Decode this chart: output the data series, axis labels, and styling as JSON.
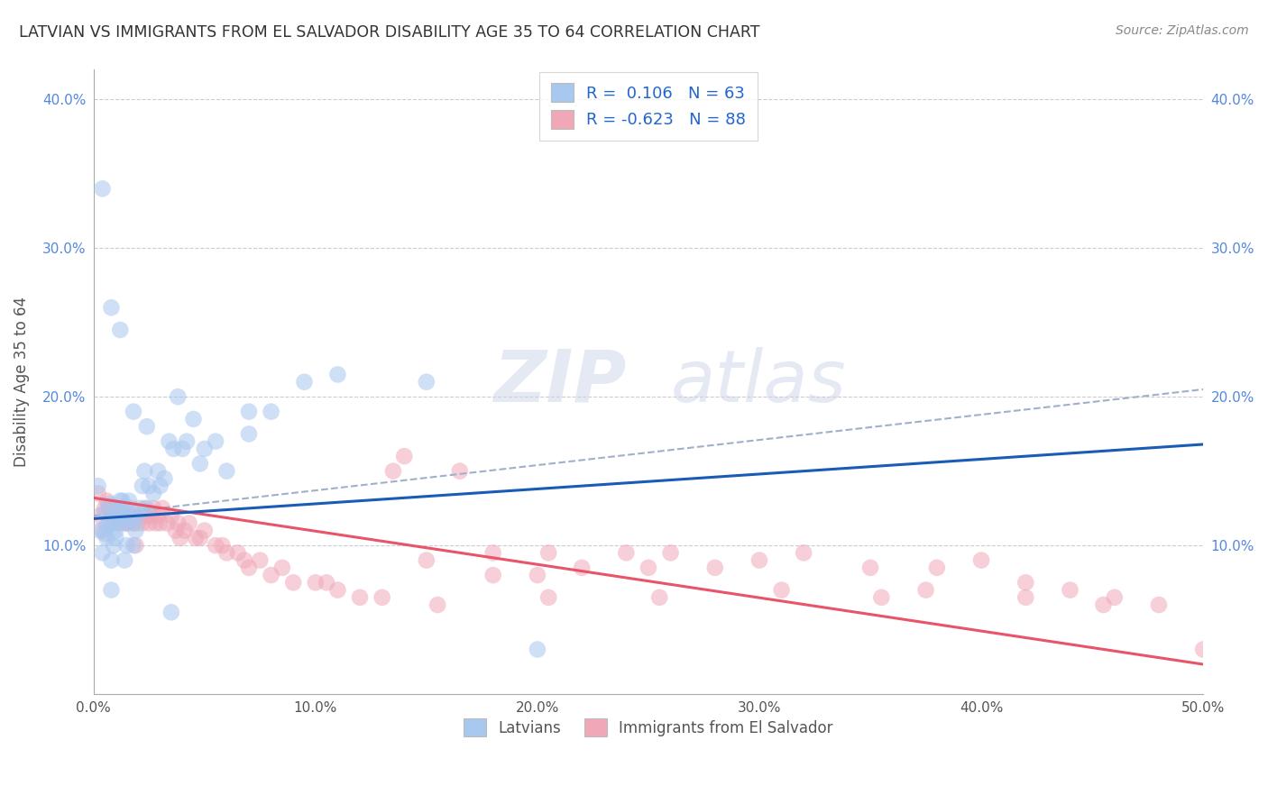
{
  "title": "LATVIAN VS IMMIGRANTS FROM EL SALVADOR DISABILITY AGE 35 TO 64 CORRELATION CHART",
  "source": "Source: ZipAtlas.com",
  "ylabel": "Disability Age 35 to 64",
  "xlim": [
    0.0,
    0.5
  ],
  "ylim": [
    0.0,
    0.42
  ],
  "xticks": [
    0.0,
    0.1,
    0.2,
    0.3,
    0.4,
    0.5
  ],
  "yticks": [
    0.0,
    0.1,
    0.2,
    0.3,
    0.4
  ],
  "xtick_labels": [
    "0.0%",
    "10.0%",
    "20.0%",
    "30.0%",
    "40.0%",
    "50.0%"
  ],
  "ytick_labels": [
    "",
    "10.0%",
    "20.0%",
    "30.0%",
    "40.0%"
  ],
  "legend_labels": [
    "Latvians",
    "Immigrants from El Salvador"
  ],
  "legend_r": [
    0.106,
    -0.623
  ],
  "legend_n": [
    63,
    88
  ],
  "blue_color": "#a8c8f0",
  "pink_color": "#f0a8b8",
  "blue_line_color": "#1a5bb5",
  "pink_line_color": "#e8546a",
  "gray_dash_color": "#a0b0cc",
  "watermark_zip": "ZIP",
  "watermark_atlas": "atlas",
  "background_color": "#ffffff",
  "grid_color": "#cccccc",
  "blue_scatter_x": [
    0.002,
    0.003,
    0.004,
    0.005,
    0.005,
    0.006,
    0.006,
    0.007,
    0.007,
    0.008,
    0.008,
    0.009,
    0.009,
    0.01,
    0.01,
    0.011,
    0.011,
    0.012,
    0.012,
    0.013,
    0.013,
    0.014,
    0.014,
    0.015,
    0.015,
    0.016,
    0.017,
    0.018,
    0.018,
    0.019,
    0.02,
    0.021,
    0.022,
    0.023,
    0.024,
    0.025,
    0.027,
    0.029,
    0.03,
    0.032,
    0.034,
    0.036,
    0.038,
    0.04,
    0.042,
    0.045,
    0.048,
    0.05,
    0.055,
    0.06,
    0.07,
    0.08,
    0.095,
    0.11,
    0.15,
    0.004,
    0.008,
    0.012,
    0.018,
    0.024,
    0.035,
    0.07,
    0.2
  ],
  "blue_scatter_y": [
    0.14,
    0.11,
    0.095,
    0.108,
    0.122,
    0.105,
    0.113,
    0.118,
    0.128,
    0.07,
    0.09,
    0.1,
    0.115,
    0.105,
    0.11,
    0.125,
    0.12,
    0.13,
    0.115,
    0.12,
    0.13,
    0.125,
    0.09,
    0.1,
    0.115,
    0.13,
    0.12,
    0.115,
    0.1,
    0.11,
    0.12,
    0.125,
    0.14,
    0.15,
    0.125,
    0.14,
    0.135,
    0.15,
    0.14,
    0.145,
    0.17,
    0.165,
    0.2,
    0.165,
    0.17,
    0.185,
    0.155,
    0.165,
    0.17,
    0.15,
    0.175,
    0.19,
    0.21,
    0.215,
    0.21,
    0.34,
    0.26,
    0.245,
    0.19,
    0.18,
    0.055,
    0.19,
    0.03
  ],
  "pink_scatter_x": [
    0.002,
    0.003,
    0.004,
    0.005,
    0.006,
    0.007,
    0.008,
    0.009,
    0.01,
    0.011,
    0.012,
    0.013,
    0.014,
    0.015,
    0.016,
    0.017,
    0.018,
    0.019,
    0.02,
    0.021,
    0.022,
    0.023,
    0.024,
    0.025,
    0.026,
    0.027,
    0.028,
    0.029,
    0.03,
    0.031,
    0.033,
    0.035,
    0.037,
    0.039,
    0.041,
    0.043,
    0.046,
    0.05,
    0.055,
    0.06,
    0.065,
    0.07,
    0.075,
    0.08,
    0.085,
    0.09,
    0.1,
    0.11,
    0.12,
    0.13,
    0.14,
    0.15,
    0.165,
    0.18,
    0.2,
    0.22,
    0.24,
    0.26,
    0.28,
    0.3,
    0.32,
    0.35,
    0.38,
    0.4,
    0.42,
    0.44,
    0.46,
    0.48,
    0.135,
    0.18,
    0.25,
    0.31,
    0.375,
    0.42,
    0.015,
    0.025,
    0.038,
    0.048,
    0.058,
    0.068,
    0.105,
    0.155,
    0.205,
    0.255,
    0.355,
    0.455,
    0.5,
    0.205
  ],
  "pink_scatter_y": [
    0.135,
    0.12,
    0.11,
    0.125,
    0.13,
    0.125,
    0.12,
    0.115,
    0.125,
    0.12,
    0.115,
    0.125,
    0.12,
    0.115,
    0.12,
    0.125,
    0.115,
    0.1,
    0.115,
    0.12,
    0.115,
    0.125,
    0.12,
    0.115,
    0.12,
    0.125,
    0.115,
    0.12,
    0.115,
    0.125,
    0.115,
    0.12,
    0.11,
    0.105,
    0.11,
    0.115,
    0.105,
    0.11,
    0.1,
    0.095,
    0.095,
    0.085,
    0.09,
    0.08,
    0.085,
    0.075,
    0.075,
    0.07,
    0.065,
    0.065,
    0.16,
    0.09,
    0.15,
    0.08,
    0.08,
    0.085,
    0.095,
    0.095,
    0.085,
    0.09,
    0.095,
    0.085,
    0.085,
    0.09,
    0.075,
    0.07,
    0.065,
    0.06,
    0.15,
    0.095,
    0.085,
    0.07,
    0.07,
    0.065,
    0.115,
    0.12,
    0.115,
    0.105,
    0.1,
    0.09,
    0.075,
    0.06,
    0.065,
    0.065,
    0.065,
    0.06,
    0.03,
    0.095
  ],
  "blue_trend": [
    0.118,
    0.168
  ],
  "pink_trend": [
    0.132,
    0.02
  ],
  "gray_trend": [
    0.12,
    0.205
  ]
}
